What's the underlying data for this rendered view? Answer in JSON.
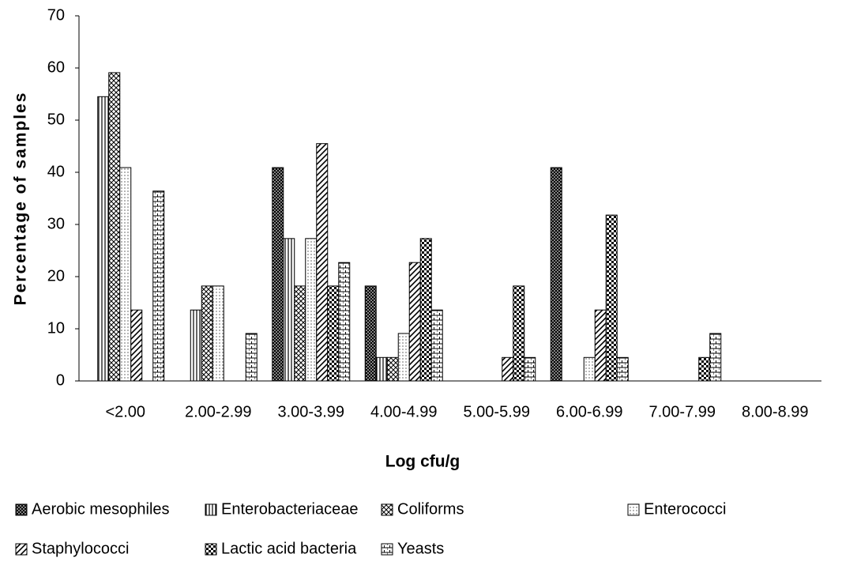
{
  "chart_data": {
    "type": "bar",
    "xlabel": "Log cfu/g",
    "ylabel": "Percentage of samples",
    "categories": [
      "<2.00",
      "2.00-2.99",
      "3.00-3.99",
      "4.00-4.99",
      "5.00-5.99",
      "6.00-6.99",
      "7.00-7.99",
      "8.00-8.99"
    ],
    "series": [
      {
        "name": "Aerobic mesophiles",
        "color": "#000000",
        "pattern": "dense-cross",
        "values": [
          0,
          0,
          40.9,
          18.2,
          0,
          40.9,
          0,
          0
        ]
      },
      {
        "name": "Enterobacteriaceae",
        "color": "#000000",
        "pattern": "vertical",
        "values": [
          54.5,
          13.6,
          27.3,
          4.5,
          0,
          0,
          0,
          0
        ]
      },
      {
        "name": "Coliforms",
        "color": "#000000",
        "pattern": "crosshatch",
        "values": [
          59.1,
          18.2,
          18.2,
          4.5,
          0,
          0,
          0,
          0
        ]
      },
      {
        "name": "Enterococci",
        "color": "#000000",
        "pattern": "dots",
        "values": [
          40.9,
          18.2,
          27.3,
          9.1,
          0,
          4.5,
          0,
          0
        ]
      },
      {
        "name": "Staphylococci",
        "color": "#000000",
        "pattern": "diagonal",
        "values": [
          13.6,
          0,
          45.5,
          22.7,
          4.5,
          13.6,
          0,
          0
        ]
      },
      {
        "name": "Lactic acid bacteria",
        "color": "#000000",
        "pattern": "checker",
        "values": [
          0,
          0,
          18.2,
          27.3,
          18.2,
          31.8,
          4.5,
          0
        ]
      },
      {
        "name": "Yeasts",
        "color": "#000000",
        "pattern": "brick",
        "values": [
          36.4,
          9.1,
          22.7,
          13.6,
          4.5,
          4.5,
          9.1,
          0
        ]
      }
    ],
    "ylim": [
      0,
      70
    ],
    "yticks": [
      0,
      10,
      20,
      30,
      40,
      50,
      60,
      70
    ],
    "grid": false,
    "legend": "bottom"
  }
}
